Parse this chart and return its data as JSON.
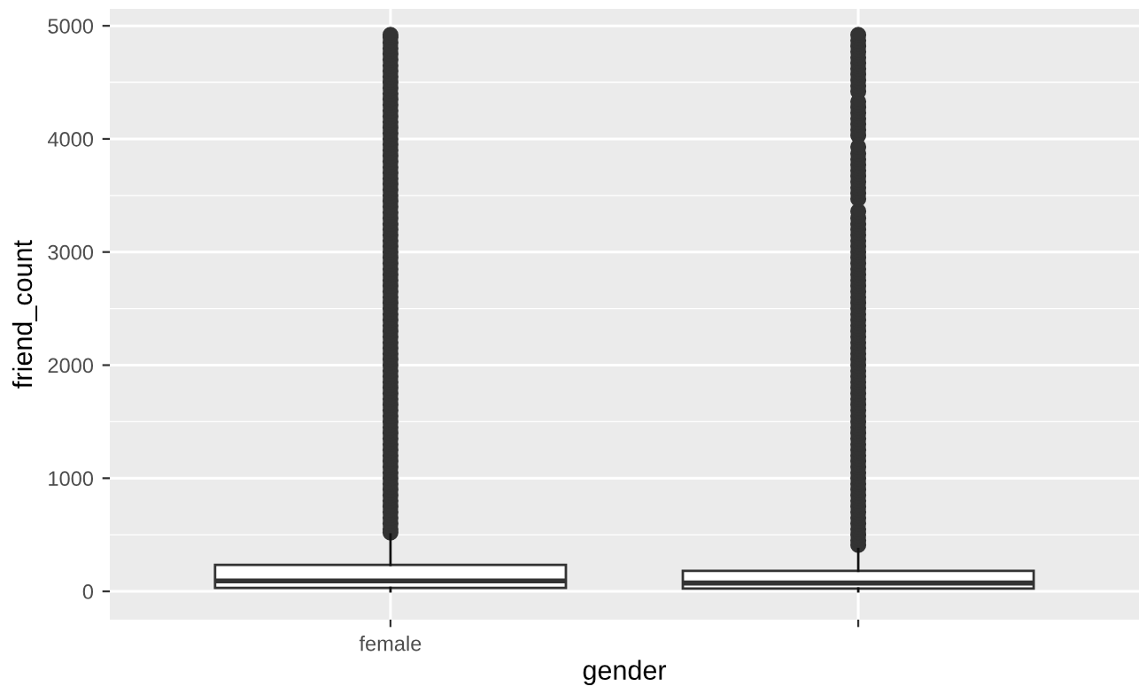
{
  "chart_data": {
    "type": "box",
    "xlabel": "gender",
    "ylabel": "friend_count",
    "categories": [
      "female",
      null
    ],
    "ylim": [
      -250,
      5150
    ],
    "yticks": [
      0,
      1000,
      2000,
      3000,
      4000,
      5000
    ],
    "grid": true,
    "legend": false,
    "boxes": [
      {
        "low": 0,
        "q1": 31,
        "median": 93,
        "q3": 234,
        "high": 503,
        "outliers": [
          520,
          550,
          600,
          650,
          700,
          750,
          800,
          850,
          900,
          950,
          1000,
          1050,
          1100,
          1150,
          1200,
          1250,
          1300,
          1350,
          1400,
          1450,
          1500,
          1550,
          1600,
          1650,
          1700,
          1750,
          1800,
          1850,
          1900,
          1950,
          2000,
          2050,
          2100,
          2150,
          2200,
          2250,
          2300,
          2350,
          2400,
          2450,
          2500,
          2550,
          2600,
          2650,
          2700,
          2750,
          2800,
          2850,
          2900,
          2950,
          3000,
          3050,
          3100,
          3150,
          3200,
          3250,
          3300,
          3350,
          3400,
          3450,
          3500,
          3550,
          3600,
          3650,
          3700,
          3750,
          3800,
          3850,
          3900,
          3950,
          4000,
          4050,
          4100,
          4150,
          4200,
          4250,
          4300,
          4350,
          4400,
          4450,
          4500,
          4550,
          4600,
          4650,
          4700,
          4750,
          4800,
          4850,
          4900,
          4920
        ]
      },
      {
        "low": 0,
        "q1": 25,
        "median": 74,
        "q3": 182,
        "high": 374,
        "outliers": [
          410,
          450,
          500,
          550,
          600,
          650,
          700,
          750,
          800,
          850,
          900,
          950,
          1000,
          1050,
          1100,
          1150,
          1200,
          1250,
          1300,
          1350,
          1400,
          1450,
          1500,
          1550,
          1600,
          1650,
          1700,
          1750,
          1800,
          1850,
          1900,
          1950,
          2000,
          2050,
          2100,
          2150,
          2200,
          2250,
          2300,
          2350,
          2400,
          2450,
          2500,
          2550,
          2600,
          2650,
          2700,
          2750,
          2800,
          2850,
          2900,
          2950,
          3000,
          3050,
          3100,
          3150,
          3200,
          3250,
          3300,
          3360,
          3470,
          3520,
          3570,
          3620,
          3670,
          3720,
          3770,
          3820,
          3870,
          3930,
          4030,
          4080,
          4130,
          4180,
          4230,
          4280,
          4330,
          4420,
          4470,
          4520,
          4570,
          4620,
          4670,
          4720,
          4770,
          4820,
          4870,
          4920
        ]
      }
    ]
  }
}
